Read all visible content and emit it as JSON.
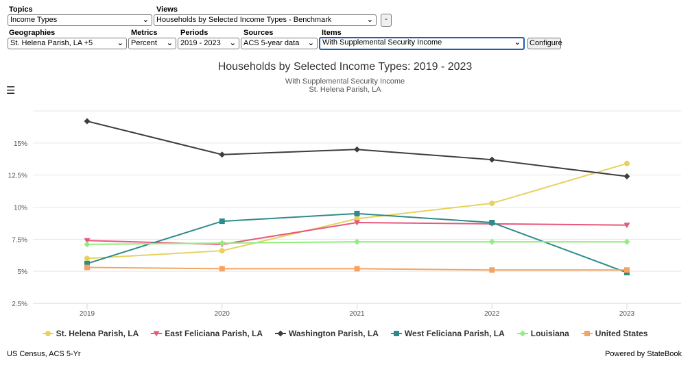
{
  "controls": {
    "topics": {
      "label": "Topics",
      "value": "Income Types"
    },
    "views": {
      "label": "Views",
      "value": "Households by Selected Income Types - Benchmark"
    },
    "minus_button": "-",
    "geographies": {
      "label": "Geographies",
      "value": "St. Helena Parish, LA +5"
    },
    "metrics": {
      "label": "Metrics",
      "value": "Percent"
    },
    "periods": {
      "label": "Periods",
      "value": "2019 - 2023"
    },
    "sources": {
      "label": "Sources",
      "value": "ACS 5-year data"
    },
    "items": {
      "label": "Items",
      "value": "With Supplemental Security Income"
    },
    "configure_button": "Configure"
  },
  "menu_icon": "hamburger-menu-icon",
  "chart_data": {
    "type": "line",
    "title": "Households by Selected Income Types: 2019 - 2023",
    "subtitle": "With Supplemental Security Income",
    "subtitle2": "St. Helena Parish, LA",
    "x": [
      "2019",
      "2020",
      "2021",
      "2022",
      "2023"
    ],
    "y_ticks": [
      "2.5%",
      "5%",
      "7.5%",
      "10%",
      "12.5%",
      "15%"
    ],
    "ylim": [
      2.5,
      17.5
    ],
    "grid": true,
    "legend_position": "bottom",
    "series": [
      {
        "name": "St. Helena Parish, LA",
        "color": "#e6d25e",
        "marker": "circle",
        "values": [
          6.0,
          6.6,
          9.1,
          10.3,
          13.4
        ]
      },
      {
        "name": "East Feliciana Parish, LA",
        "color": "#e8577a",
        "marker": "triangle-down",
        "values": [
          7.4,
          7.1,
          8.8,
          8.7,
          8.6
        ]
      },
      {
        "name": "Washington Parish, LA",
        "color": "#3d3d3d",
        "marker": "diamond",
        "values": [
          16.7,
          14.1,
          14.5,
          13.7,
          12.4
        ]
      },
      {
        "name": "West Feliciana Parish, LA",
        "color": "#2e8b8b",
        "marker": "square",
        "values": [
          5.6,
          8.9,
          9.5,
          8.8,
          4.9
        ]
      },
      {
        "name": "Louisiana",
        "color": "#90ee7e",
        "marker": "diamond",
        "values": [
          7.1,
          7.2,
          7.3,
          7.3,
          7.3
        ]
      },
      {
        "name": "United States",
        "color": "#f4a460",
        "marker": "square",
        "values": [
          5.3,
          5.2,
          5.2,
          5.1,
          5.1
        ]
      }
    ]
  },
  "footer": {
    "source": "US Census, ACS 5-Yr",
    "powered": "Powered by StateBook"
  }
}
